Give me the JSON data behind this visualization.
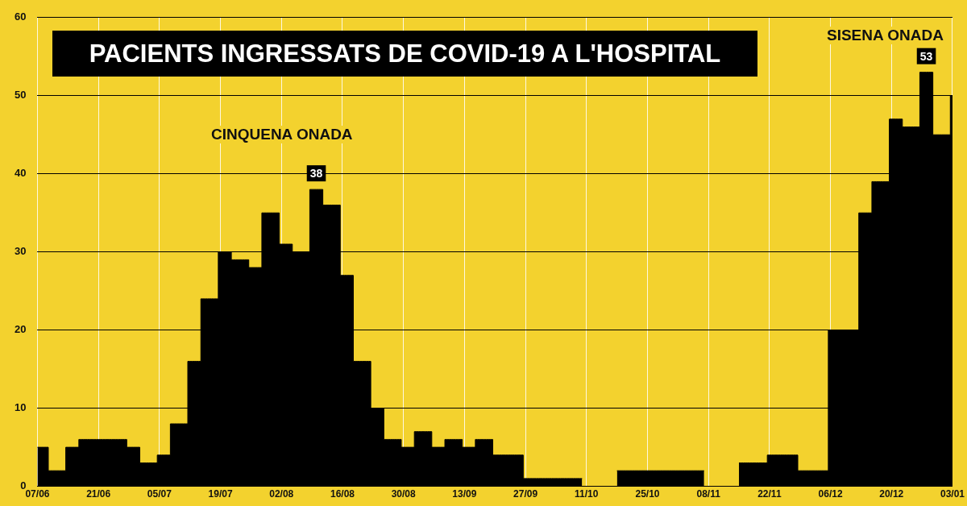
{
  "chart_data": {
    "type": "area",
    "title": "PACIENTS INGRESSATS DE COVID-19 A L'HOSPITAL",
    "categories": [
      "07/06",
      null,
      null,
      null,
      null,
      null,
      null,
      null,
      null,
      null,
      null,
      null,
      null,
      null,
      "21/06",
      null,
      null,
      null,
      null,
      null,
      null,
      null,
      null,
      null,
      null,
      null,
      null,
      null,
      "05/07",
      null,
      null,
      null,
      null,
      null,
      null,
      null,
      null,
      null,
      null,
      null,
      null,
      null,
      "19/07",
      null,
      null,
      null,
      null,
      null,
      null,
      null,
      null,
      null,
      null,
      null,
      null,
      null,
      "02/08",
      null,
      null,
      null,
      null,
      null,
      null,
      null,
      null,
      null,
      null,
      null,
      null,
      null,
      "16/08",
      null,
      null,
      null,
      null,
      null,
      null,
      null,
      null,
      null,
      null,
      null,
      null,
      null,
      "30/08",
      null,
      null,
      null,
      null,
      null,
      null,
      null,
      null,
      null,
      null,
      null,
      null,
      null,
      "13/09",
      null,
      null,
      null,
      null,
      null,
      null,
      null,
      null,
      null,
      null,
      null,
      null,
      null,
      "27/09",
      null,
      null,
      null,
      null,
      null,
      null,
      null,
      null,
      null,
      null,
      null,
      null,
      null,
      "11/10",
      null,
      null,
      null,
      null,
      null,
      null,
      null,
      null,
      null,
      null,
      null,
      null,
      null,
      "25/10",
      null,
      null,
      null,
      null,
      null,
      null,
      null,
      null,
      null,
      null,
      null,
      null,
      null,
      "08/11",
      null,
      null,
      null,
      null,
      null,
      null,
      null,
      null,
      null,
      null,
      null,
      null,
      null,
      "22/11",
      null,
      null,
      null,
      null,
      null,
      null,
      null,
      null,
      null,
      null,
      null,
      null,
      null,
      "06/12",
      null,
      null,
      null,
      null,
      null,
      null,
      null,
      null,
      null,
      null,
      null,
      null,
      null,
      "20/12",
      null,
      null,
      null,
      null,
      null,
      null,
      null,
      null,
      null,
      null,
      null,
      null,
      null,
      "03/01"
    ],
    "series": [
      {
        "color": "#000000",
        "values": [
          5,
          5,
          5,
          2,
          2,
          2,
          2,
          5,
          5,
          5,
          6,
          6,
          6,
          6,
          6,
          6,
          6,
          6,
          6,
          6,
          6,
          5,
          5,
          5,
          3,
          3,
          3,
          3,
          4,
          4,
          4,
          8,
          8,
          8,
          8,
          16,
          16,
          16,
          24,
          24,
          24,
          24,
          30,
          30,
          30,
          29,
          29,
          29,
          29,
          28,
          28,
          28,
          35,
          35,
          35,
          35,
          31,
          31,
          31,
          30,
          30,
          30,
          30,
          38,
          38,
          38,
          36,
          36,
          36,
          36,
          27,
          27,
          27,
          16,
          16,
          16,
          16,
          10,
          10,
          10,
          6,
          6,
          6,
          6,
          5,
          5,
          5,
          7,
          7,
          7,
          7,
          5,
          5,
          5,
          6,
          6,
          6,
          6,
          5,
          5,
          5,
          6,
          6,
          6,
          6,
          4,
          4,
          4,
          4,
          4,
          4,
          4,
          1,
          1,
          1,
          1,
          1,
          1,
          1,
          1,
          1,
          1,
          1,
          1,
          1,
          1,
          null,
          null,
          null,
          null,
          null,
          null,
          null,
          2,
          2,
          2,
          2,
          2,
          2,
          2,
          2,
          2,
          2,
          2,
          2,
          2,
          2,
          2,
          2,
          2,
          2,
          2,
          2,
          2,
          null,
          null,
          null,
          null,
          null,
          null,
          null,
          3,
          3,
          3,
          3,
          3,
          3,
          3,
          4,
          4,
          4,
          4,
          4,
          4,
          4,
          2,
          2,
          2,
          2,
          2,
          2,
          2,
          20,
          20,
          20,
          20,
          20,
          20,
          20,
          35,
          35,
          35,
          39,
          39,
          39,
          39,
          47,
          47,
          47,
          46,
          46,
          46,
          46,
          53,
          53,
          53,
          45,
          45,
          45,
          45,
          50
        ],
        "value_labels": [
          null,
          null,
          null,
          null,
          null,
          null,
          null,
          null,
          null,
          null,
          null,
          null,
          null,
          null,
          null,
          null,
          null,
          null,
          null,
          null,
          null,
          null,
          null,
          null,
          null,
          null,
          null,
          null,
          null,
          null,
          null,
          null,
          null,
          null,
          null,
          null,
          null,
          null,
          null,
          null,
          null,
          null,
          null,
          null,
          null,
          null,
          null,
          null,
          null,
          null,
          null,
          null,
          null,
          null,
          null,
          null,
          null,
          null,
          null,
          null,
          null,
          null,
          null,
          null,
          "38",
          null,
          null,
          null,
          null,
          null,
          null,
          null,
          null,
          null,
          null,
          null,
          null,
          null,
          null,
          null,
          null,
          null,
          null,
          null,
          null,
          null,
          null,
          null,
          null,
          null,
          null,
          null,
          null,
          null,
          null,
          null,
          null,
          null,
          null,
          null,
          null,
          null,
          null,
          null,
          null,
          null,
          null,
          null,
          null,
          null,
          null,
          null,
          null,
          null,
          null,
          null,
          null,
          null,
          null,
          null,
          null,
          null,
          null,
          null,
          null,
          null,
          null,
          null,
          null,
          null,
          null,
          null,
          null,
          null,
          null,
          null,
          null,
          null,
          null,
          null,
          null,
          null,
          null,
          null,
          null,
          null,
          null,
          null,
          null,
          null,
          null,
          null,
          null,
          null,
          null,
          null,
          null,
          null,
          null,
          null,
          null,
          null,
          null,
          null,
          null,
          null,
          null,
          null,
          null,
          null,
          null,
          null,
          null,
          null,
          null,
          null,
          null,
          null,
          null,
          null,
          null,
          null,
          null,
          null,
          null,
          null,
          null,
          null,
          null,
          null,
          null,
          null,
          null,
          null,
          null,
          null,
          null,
          null,
          null,
          null,
          null,
          null,
          null,
          null,
          "53",
          null,
          null,
          null,
          null,
          null,
          null
        ]
      }
    ],
    "ylim": [
      0,
      60
    ],
    "yticks": [
      0,
      10,
      20,
      30,
      40,
      50,
      60
    ],
    "grid": true,
    "annotations": [
      "CINQUENA ONADA",
      "SISENA ONADA"
    ]
  }
}
